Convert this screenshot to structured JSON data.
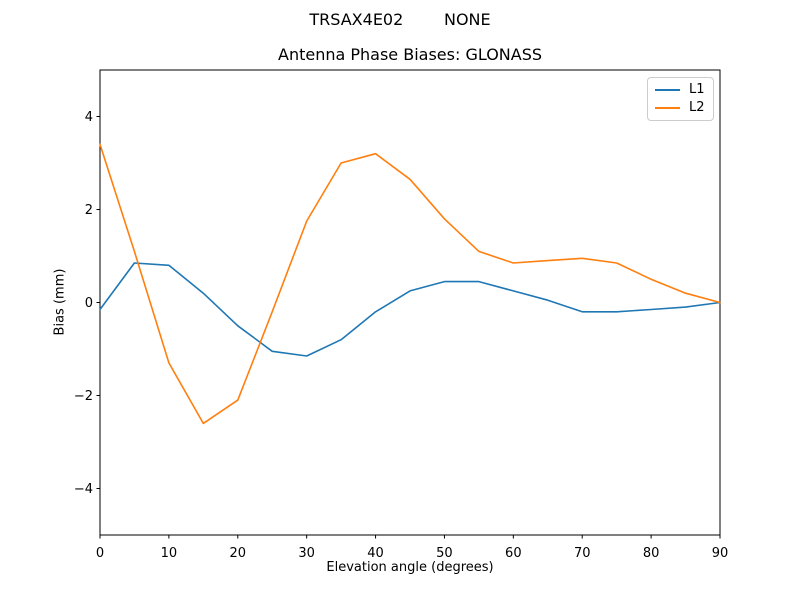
{
  "figure": {
    "suptitle": "TRSAX4E02        NONE",
    "background": "#ffffff",
    "text_color": "#000000",
    "spine_color": "#000000"
  },
  "chart_data": {
    "type": "line",
    "title": "Antenna Phase Biases: GLONASS",
    "xlabel": "Elevation angle (degrees)",
    "ylabel": "Bias (mm)",
    "xlim": [
      0,
      90
    ],
    "ylim": [
      -5,
      5
    ],
    "xticks": [
      0,
      10,
      20,
      30,
      40,
      50,
      60,
      70,
      80,
      90
    ],
    "yticks": [
      -4,
      -2,
      0,
      2,
      4
    ],
    "grid": false,
    "legend_position": "upper right",
    "x": [
      0,
      5,
      10,
      15,
      20,
      25,
      30,
      35,
      40,
      45,
      50,
      55,
      60,
      65,
      70,
      75,
      80,
      85,
      90
    ],
    "series": [
      {
        "name": "L1",
        "color": "#1f77b4",
        "values": [
          -0.15,
          0.85,
          0.8,
          0.2,
          -0.5,
          -1.05,
          -1.15,
          -0.8,
          -0.2,
          0.25,
          0.45,
          0.45,
          0.25,
          0.05,
          -0.2,
          -0.2,
          -0.15,
          -0.1,
          0.0
        ]
      },
      {
        "name": "L2",
        "color": "#ff7f0e",
        "values": [
          3.4,
          1.1,
          -1.3,
          -2.6,
          -2.1,
          -0.2,
          1.75,
          3.0,
          3.2,
          2.65,
          1.8,
          1.1,
          0.85,
          0.9,
          0.95,
          0.85,
          0.5,
          0.2,
          0.0
        ]
      }
    ]
  }
}
